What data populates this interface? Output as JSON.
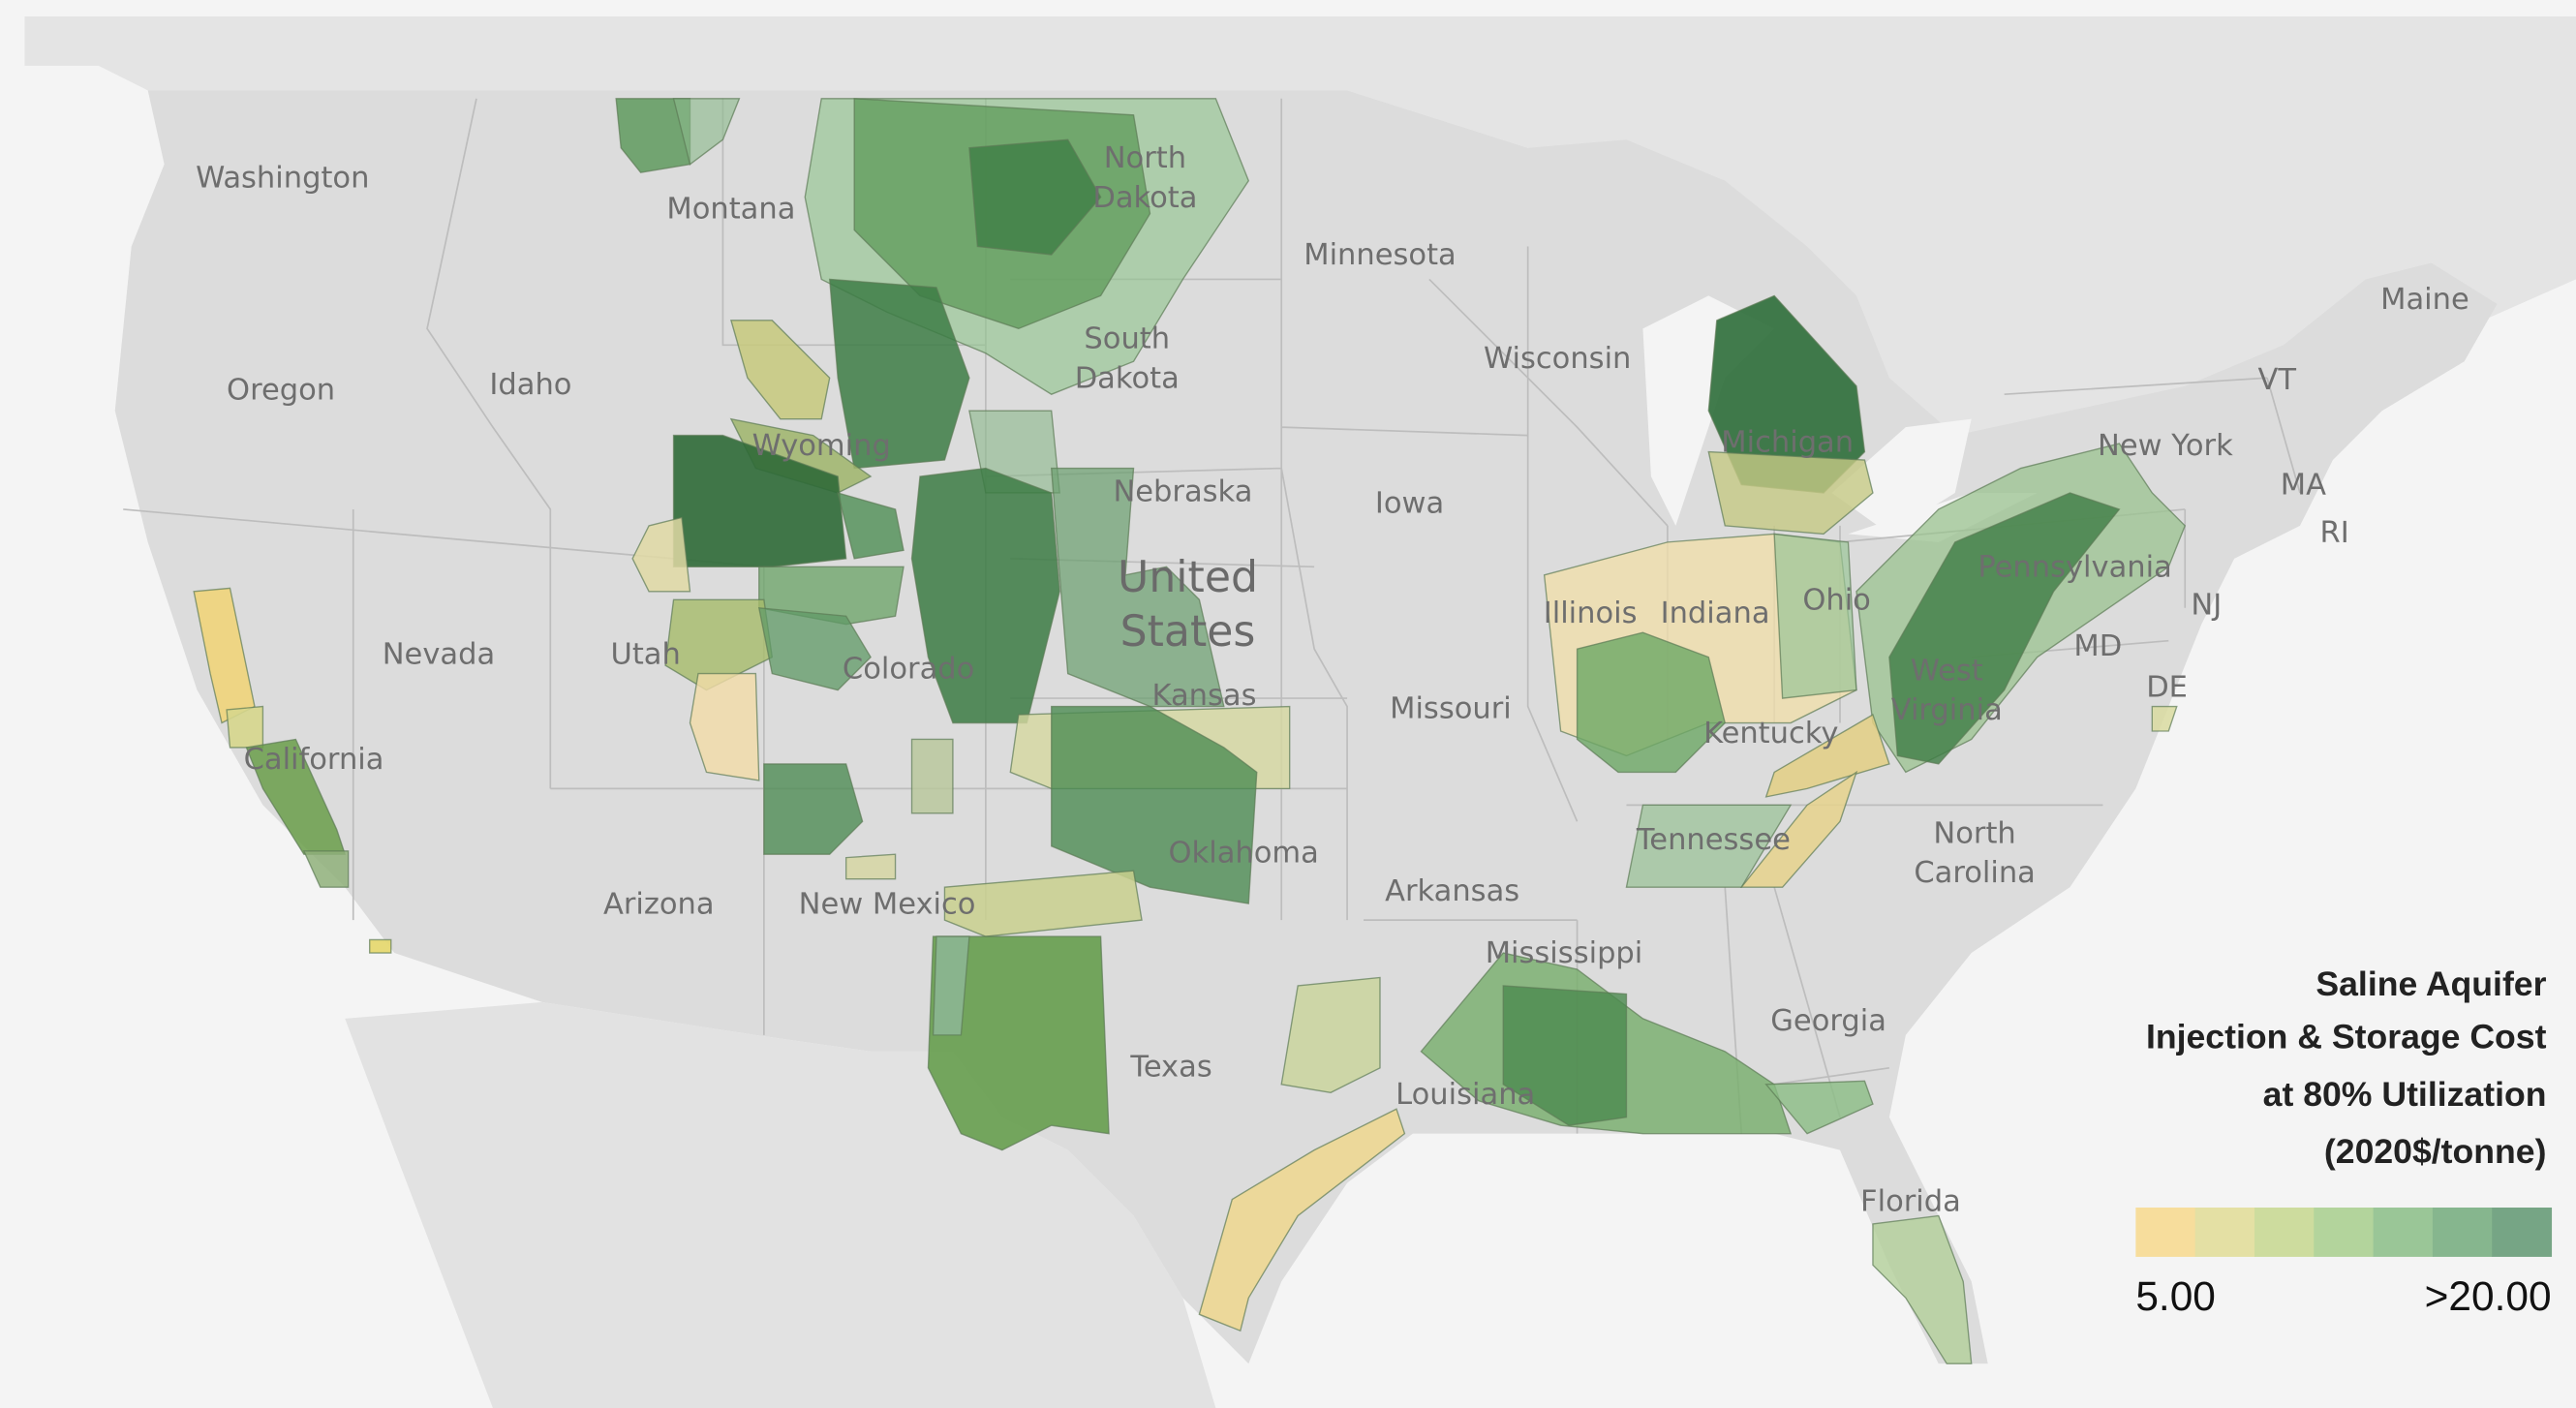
{
  "state_labels": [
    [
      "Washington"
    ],
    [
      "Montana"
    ],
    [
      "Minnesota"
    ],
    [
      "Oregon"
    ],
    [
      "Idaho"
    ],
    [
      "North",
      "Dakota"
    ],
    [
      "South",
      "Dakota"
    ],
    [
      "Wisconsin"
    ],
    [
      "Maine"
    ],
    [
      "VT"
    ],
    [
      "New York"
    ],
    [
      "MA"
    ],
    [
      "RI"
    ],
    [
      "Iowa"
    ],
    [
      "Michigan"
    ],
    [
      "Nevada"
    ],
    [
      "Utah"
    ],
    [
      "Colorado"
    ],
    [
      "Kansas"
    ],
    [
      "Missouri"
    ],
    [
      "Illinois"
    ],
    [
      "Indiana"
    ],
    [
      "Ohio"
    ],
    [
      "Pennsylvania"
    ],
    [
      "NJ"
    ],
    [
      "MD"
    ],
    [
      "DE"
    ],
    [
      "West",
      "Virginia"
    ],
    [
      "Kentucky"
    ],
    [
      "California"
    ],
    [
      "Tennessee"
    ],
    [
      "North",
      "Carolina"
    ],
    [
      "Oklahoma"
    ],
    [
      "Arkansas"
    ],
    [
      "Arizona"
    ],
    [
      "New Mexico"
    ],
    [
      "Mississippi"
    ],
    [
      "Georgia"
    ],
    [
      "Texas"
    ],
    [
      "Louisiana"
    ],
    [
      "Florida"
    ],
    [
      "Wyoming"
    ],
    [
      "Nebraska"
    ]
  ],
  "country_label": [
    "United",
    "States"
  ],
  "legend": {
    "title": [
      "Saline Aquifer",
      "Injection & Storage Cost",
      "at 80% Utilization",
      "(2020$/tonne)"
    ],
    "min_label": "5.00",
    "max_label": ">20.00",
    "colors": [
      "#f7dd9c",
      "#e4e0a4",
      "#cddc9e",
      "#b3d49c",
      "#9ac697",
      "#86b68e",
      "#76a585"
    ]
  }
}
